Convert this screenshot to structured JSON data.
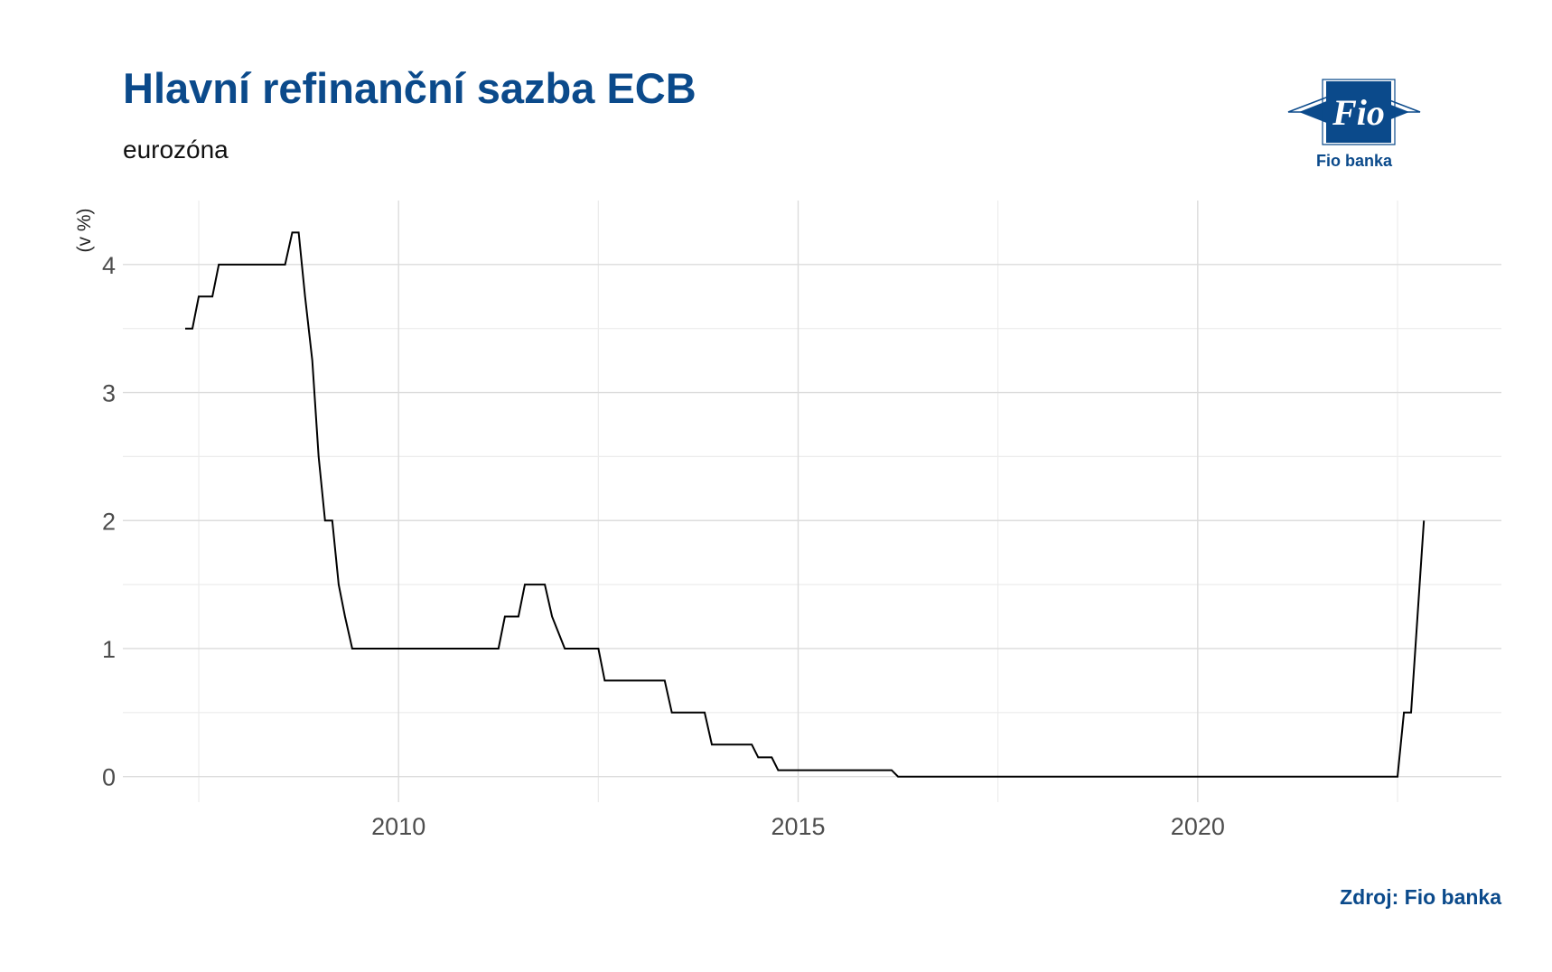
{
  "title": "Hlavní refinanční sazba ECB",
  "subtitle": "eurozóna",
  "logo": {
    "label": "Fio banka",
    "mark_text": "Fio",
    "brand_color": "#0b4a8b"
  },
  "source": "Zdroj: Fio banka",
  "chart_data": {
    "type": "line",
    "title": "Hlavní refinanční sazba ECB",
    "subtitle": "eurozóna",
    "xlabel": "",
    "ylabel": "(v %)",
    "xlim": [
      2006.55,
      2023.8
    ],
    "ylim": [
      -0.2,
      4.5
    ],
    "xticks": [
      2010,
      2015,
      2020
    ],
    "xticklabels": [
      "2010",
      "2015",
      "2020"
    ],
    "x_minor_gridlines": [
      2007.5,
      2012.5,
      2017.5,
      2022.5
    ],
    "yticks": [
      0,
      1,
      2,
      3,
      4
    ],
    "yticklabels": [
      "0",
      "1",
      "2",
      "3",
      "4"
    ],
    "y_minor_gridlines": [
      0.5,
      1.5,
      2.5,
      3.5
    ],
    "grid": true,
    "legend": "none",
    "line_color": "#000000",
    "series": [
      {
        "x": [
          2007.33,
          2007.42,
          2007.5,
          2007.67,
          2007.75,
          2008.58,
          2008.67,
          2008.75,
          2008.83,
          2008.92,
          2009.0,
          2009.08,
          2009.17,
          2009.25,
          2009.33,
          2009.42,
          2009.5,
          2011.25,
          2011.33,
          2011.5,
          2011.58,
          2011.83,
          2011.92,
          2012.08,
          2012.5,
          2012.58,
          2013.33,
          2013.42,
          2013.83,
          2013.92,
          2014.42,
          2014.5,
          2014.67,
          2014.75,
          2016.17,
          2016.25,
          2022.5,
          2022.58,
          2022.67,
          2022.75,
          2022.83
        ],
        "y": [
          3.5,
          3.5,
          3.75,
          3.75,
          4.0,
          4.0,
          4.25,
          4.25,
          3.75,
          3.25,
          2.5,
          2.0,
          2.0,
          1.5,
          1.25,
          1.0,
          1.0,
          1.0,
          1.25,
          1.25,
          1.5,
          1.5,
          1.25,
          1.0,
          1.0,
          0.75,
          0.75,
          0.5,
          0.5,
          0.25,
          0.25,
          0.15,
          0.15,
          0.05,
          0.05,
          0.0,
          0.0,
          0.5,
          0.5,
          1.25,
          2.0
        ]
      }
    ]
  }
}
